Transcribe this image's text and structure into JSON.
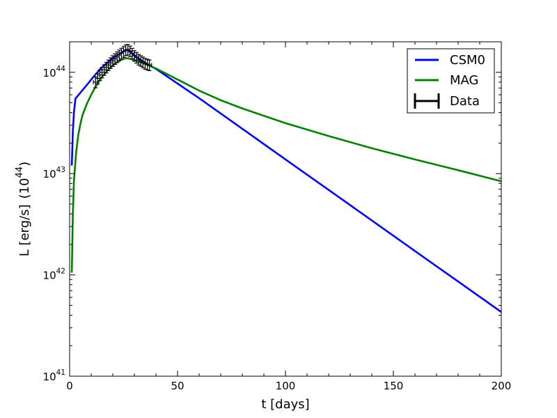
{
  "chart_data": {
    "type": "line",
    "xlabel": "t [days]",
    "ylabel": "L [erg/s]",
    "ylabel_factor": {
      "base": "(10",
      "exp": "44",
      "close": ")"
    },
    "xlim": [
      0,
      200
    ],
    "ylim": [
      1e+41,
      2e+44
    ],
    "yscale": "log",
    "grid": false,
    "legend_position": "top-right",
    "x_ticks": [
      {
        "value": 0,
        "label": "0"
      },
      {
        "value": 50,
        "label": "50"
      },
      {
        "value": 100,
        "label": "100"
      },
      {
        "value": 150,
        "label": "150"
      },
      {
        "value": 200,
        "label": "200"
      }
    ],
    "y_ticks": [
      {
        "value": 1e+41,
        "base": "10",
        "exp": "41"
      },
      {
        "value": 1e+42,
        "base": "10",
        "exp": "42"
      },
      {
        "value": 1e+43,
        "base": "10",
        "exp": "43"
      },
      {
        "value": 1e+44,
        "base": "10",
        "exp": "44"
      }
    ],
    "series": [
      {
        "name": "CSM0",
        "color": "#0000ff",
        "points": [
          [
            1,
            1.2e+43
          ],
          [
            1.5,
            2.6e+43
          ],
          [
            2,
            4e+43
          ],
          [
            2.7,
            5.5e+43
          ],
          [
            5,
            6.3e+43
          ],
          [
            8,
            7.5e+43
          ],
          [
            11,
            9e+43
          ],
          [
            14,
            1.07e+44
          ],
          [
            17,
            1.22e+44
          ],
          [
            20,
            1.38e+44
          ],
          [
            23,
            1.52e+44
          ],
          [
            25,
            1.62e+44
          ],
          [
            26.5,
            1.66e+44
          ],
          [
            28,
            1.6e+44
          ],
          [
            30,
            1.47e+44
          ],
          [
            33,
            1.32e+44
          ],
          [
            37,
            1.17e+44
          ],
          [
            40,
            1.08e+44
          ],
          [
            60,
            5.55e+43
          ],
          [
            80,
            2.77e+43
          ],
          [
            100,
            1.38e+43
          ],
          [
            120,
            6.9e+42
          ],
          [
            140,
            3.45e+42
          ],
          [
            160,
            1.72e+42
          ],
          [
            180,
            8.6e+41
          ],
          [
            200,
            4.3e+41
          ]
        ]
      },
      {
        "name": "MAG",
        "color": "#008000",
        "points": [
          [
            1,
            1.05e+42
          ],
          [
            1.5,
            4e+42
          ],
          [
            2,
            8.5e+42
          ],
          [
            3,
            1.6e+43
          ],
          [
            4,
            2.4e+43
          ],
          [
            5,
            3.1e+43
          ],
          [
            6,
            3.8e+43
          ],
          [
            8,
            4.9e+43
          ],
          [
            10,
            6e+43
          ],
          [
            12,
            7.2e+43
          ],
          [
            15,
            9e+43
          ],
          [
            18,
            1.07e+44
          ],
          [
            21,
            1.22e+44
          ],
          [
            24,
            1.33e+44
          ],
          [
            26,
            1.38e+44
          ],
          [
            28,
            1.36e+44
          ],
          [
            31,
            1.3e+44
          ],
          [
            35,
            1.21e+44
          ],
          [
            40,
            1.09e+44
          ],
          [
            50,
            8.5e+43
          ],
          [
            60,
            6.6e+43
          ],
          [
            70,
            5.3e+43
          ],
          [
            80,
            4.4e+43
          ],
          [
            100,
            3.15e+43
          ],
          [
            120,
            2.35e+43
          ],
          [
            140,
            1.78e+43
          ],
          [
            160,
            1.38e+43
          ],
          [
            180,
            1.08e+43
          ],
          [
            200,
            8.4e+42
          ]
        ]
      }
    ],
    "data_points": {
      "name": "Data",
      "color": "#000000",
      "x_err": 1.0,
      "y_rel_err": 0.12,
      "points": [
        [
          12,
          8e+43
        ],
        [
          13,
          8.7e+43
        ],
        [
          14,
          9.4e+43
        ],
        [
          15,
          1e+44
        ],
        [
          16,
          1.06e+44
        ],
        [
          17,
          1.12e+44
        ],
        [
          18,
          1.18e+44
        ],
        [
          19,
          1.24e+44
        ],
        [
          20,
          1.3e+44
        ],
        [
          21,
          1.36e+44
        ],
        [
          22,
          1.42e+44
        ],
        [
          23,
          1.48e+44
        ],
        [
          24,
          1.54e+44
        ],
        [
          25,
          1.6e+44
        ],
        [
          26,
          1.66e+44
        ],
        [
          27,
          1.68e+44
        ],
        [
          28,
          1.62e+44
        ],
        [
          29,
          1.54e+44
        ],
        [
          30,
          1.46e+44
        ],
        [
          31,
          1.4e+44
        ],
        [
          32,
          1.34e+44
        ],
        [
          33,
          1.3e+44
        ],
        [
          34,
          1.26e+44
        ],
        [
          35,
          1.22e+44
        ],
        [
          36,
          1.2e+44
        ],
        [
          37,
          1.18e+44
        ]
      ]
    },
    "legend": [
      {
        "label": "CSM0",
        "kind": "line",
        "color": "#0000ff"
      },
      {
        "label": "MAG",
        "kind": "line",
        "color": "#008000"
      },
      {
        "label": "Data",
        "kind": "errorbar",
        "color": "#000000"
      }
    ]
  }
}
